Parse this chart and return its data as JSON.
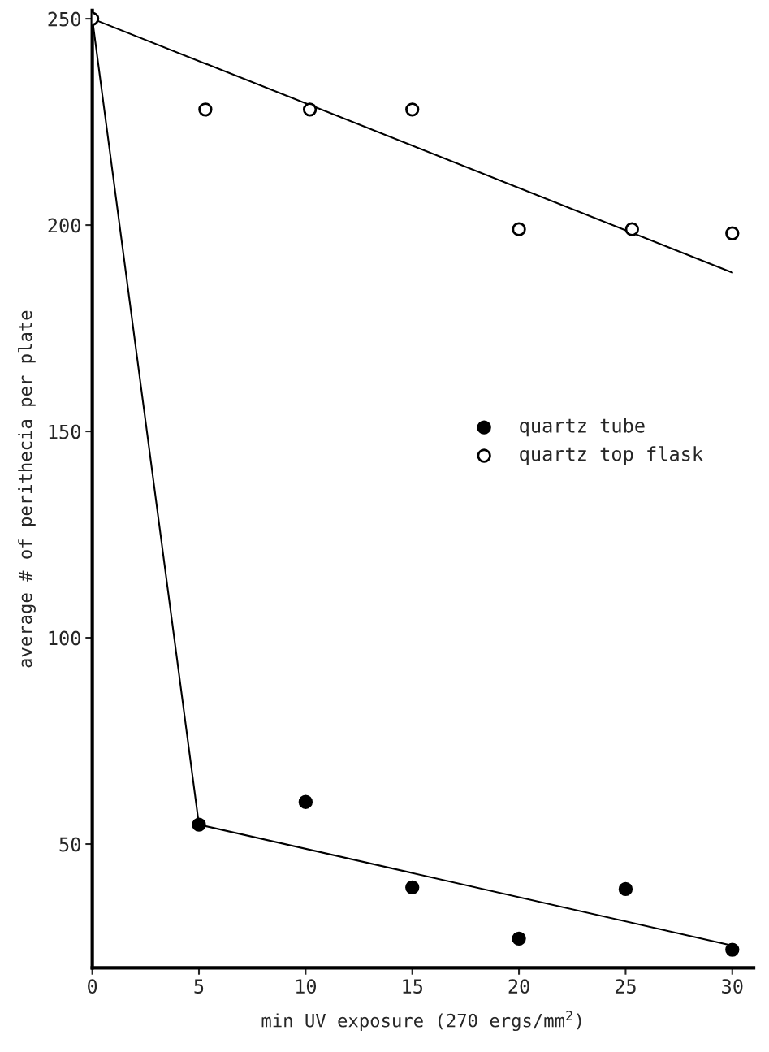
{
  "chart_data": {
    "type": "scatter",
    "xlabel": "min UV exposure (270 ergs/mm$^{2}$)",
    "ylabel": "average # of perithecia per plate",
    "xlim": [
      0,
      31
    ],
    "ylim": [
      20,
      252
    ],
    "xticks": [
      0,
      5,
      10,
      15,
      20,
      25,
      30
    ],
    "yticks": [
      50,
      100,
      150,
      200,
      250
    ],
    "grid": false,
    "legend": "right",
    "series": [
      {
        "name": "quartz tube",
        "marker": "circle",
        "color": "#000000",
        "x": [
          5,
          10,
          15,
          20,
          25,
          30
        ],
        "values": [
          54.7,
          60.2,
          39.5,
          27.1,
          39.1,
          24.4
        ]
      },
      {
        "name": "quartz top flask",
        "marker": "circle",
        "color": "#ffffff",
        "x": [
          0,
          5.3,
          10.2,
          15,
          20,
          25.3,
          30
        ],
        "values": [
          250,
          228,
          228,
          228,
          199,
          199,
          198
        ]
      },
      {
        "type": "line",
        "color": "#000000",
        "x": [
          0,
          5,
          30
        ],
        "values": [
          250,
          54.7,
          25.4
        ]
      },
      {
        "type": "line",
        "color": "#000000",
        "x": [
          0,
          30
        ],
        "values": [
          250,
          188.5
        ]
      }
    ]
  }
}
